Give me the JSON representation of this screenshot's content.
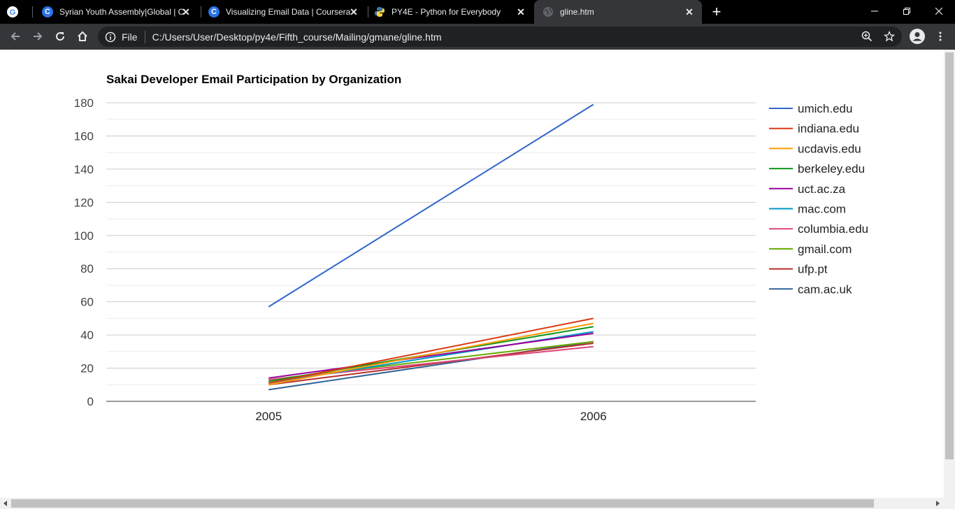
{
  "tabs": [
    {
      "title": "",
      "icon": "google-icon"
    },
    {
      "title": "Syrian Youth Assembly|Global | C",
      "icon": "coursera-icon"
    },
    {
      "title": "Visualizing Email Data | Coursera",
      "icon": "coursera-icon"
    },
    {
      "title": "PY4E - Python for Everybody",
      "icon": "python-icon"
    },
    {
      "title": "gline.htm",
      "icon": "globe-icon"
    }
  ],
  "toolbar": {
    "file_label": "File",
    "url": "C:/Users/User/Desktop/py4e/Fifth_course/Mailing/gmane/gline.htm"
  },
  "colors": {
    "tabstrip_bg": "#000000",
    "toolbar_bg": "#35363a",
    "omnibox_bg": "#202124"
  },
  "chart_data": {
    "type": "line",
    "title": "Sakai Developer Email Participation by Organization",
    "x": [
      "2005",
      "2006"
    ],
    "ylim": [
      0,
      180
    ],
    "yticks": [
      0,
      20,
      40,
      60,
      80,
      100,
      120,
      140,
      160,
      180
    ],
    "grid": true,
    "legend_position": "right",
    "series": [
      {
        "name": "umich.edu",
        "color": "#3366cc",
        "values": [
          57,
          179
        ]
      },
      {
        "name": "indiana.edu",
        "color": "#dc3912",
        "values": [
          11,
          50
        ]
      },
      {
        "name": "ucdavis.edu",
        "color": "#ff9900",
        "values": [
          10,
          47
        ]
      },
      {
        "name": "berkeley.edu",
        "color": "#109618",
        "values": [
          12,
          45
        ]
      },
      {
        "name": "uct.ac.za",
        "color": "#990099",
        "values": [
          14,
          41
        ]
      },
      {
        "name": "mac.com",
        "color": "#0099c6",
        "values": [
          11,
          42
        ]
      },
      {
        "name": "columbia.edu",
        "color": "#dd4477",
        "values": [
          13,
          33
        ]
      },
      {
        "name": "gmail.com",
        "color": "#66aa00",
        "values": [
          13,
          36
        ]
      },
      {
        "name": "ufp.pt",
        "color": "#b82e2e",
        "values": [
          10,
          35
        ]
      },
      {
        "name": "cam.ac.uk",
        "color": "#316395",
        "values": [
          7,
          36
        ]
      }
    ]
  }
}
